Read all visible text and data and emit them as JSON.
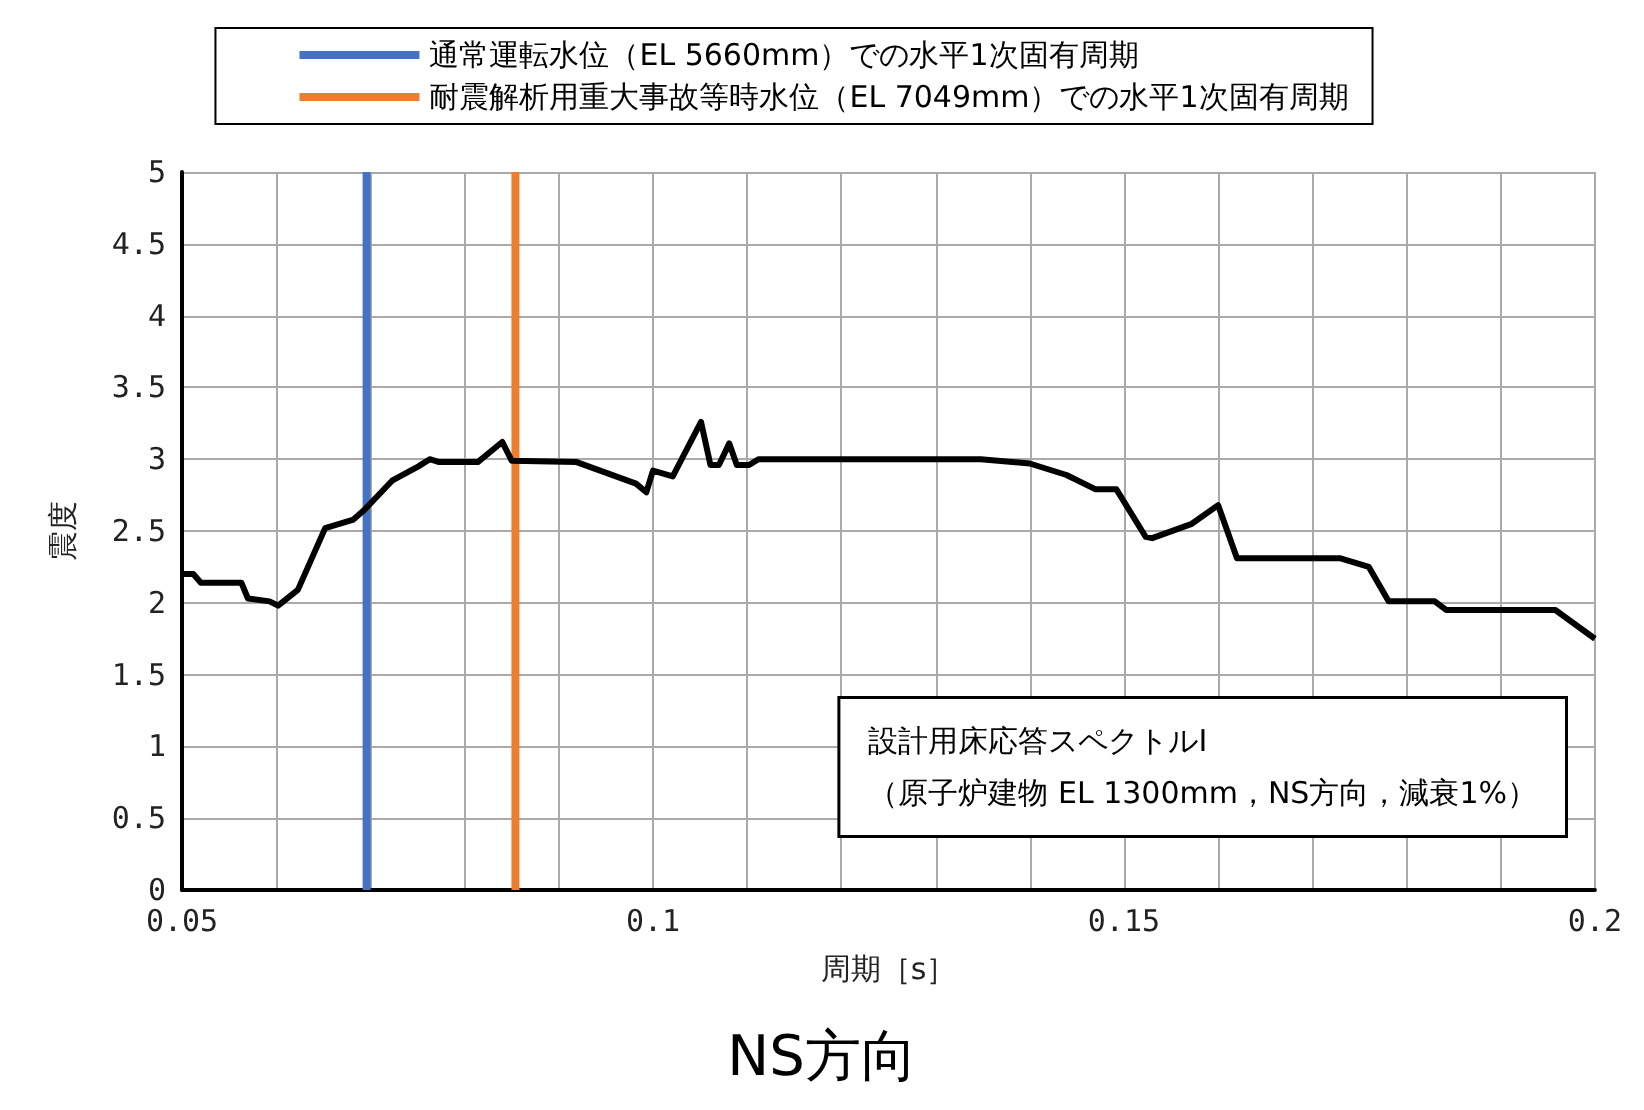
{
  "chart_data": {
    "type": "line",
    "title": "NS方向",
    "xlabel": "周期［s］",
    "ylabel": "震度",
    "annotations": [
      "設計用床応答スペクトルⅠ\n（原子炉建物 EL 1300mm，NS方向，減衰1%）"
    ],
    "x": [
      0.05,
      0.0512,
      0.052,
      0.0563,
      0.057,
      0.0593,
      0.0602,
      0.0623,
      0.0652,
      0.0682,
      0.0694,
      0.0723,
      0.0751,
      0.0763,
      0.0773,
      0.0814,
      0.084,
      0.085,
      0.0919,
      0.0982,
      0.0993,
      0.1,
      0.1021,
      0.1051,
      0.1061,
      0.107,
      0.1081,
      0.1089,
      0.1102,
      0.1112,
      0.1348,
      0.14,
      0.1439,
      0.147,
      0.1492,
      0.1523,
      0.153,
      0.1572,
      0.16,
      0.162,
      0.173,
      0.176,
      0.1781,
      0.183,
      0.1842,
      0.1958,
      0.2
    ],
    "series": [
      {
        "color": "#000000",
        "values": [
          2.2,
          2.2,
          2.14,
          2.14,
          2.03,
          2.01,
          1.98,
          2.09,
          2.52,
          2.58,
          2.65,
          2.85,
          2.95,
          3.0,
          2.98,
          2.98,
          3.12,
          2.99,
          2.98,
          2.83,
          2.77,
          2.92,
          2.88,
          3.26,
          2.96,
          2.96,
          3.11,
          2.96,
          2.96,
          3.0,
          3.0,
          2.97,
          2.89,
          2.79,
          2.79,
          2.46,
          2.45,
          2.55,
          2.68,
          2.31,
          2.31,
          2.25,
          2.01,
          2.01,
          1.95,
          1.95,
          1.75
        ]
      }
    ],
    "ref_lines": [
      {
        "axis": "x",
        "value": 0.0696,
        "label": "通常運転水位（EL 5660mm）での水平1次固有周期",
        "color": "#4472c4"
      },
      {
        "axis": "x",
        "value": 0.0854,
        "label": "耐震解析用重大事故等時水位（EL 7049mm）での水平1次固有周期",
        "color": "#ed7d31"
      }
    ],
    "xlim": [
      0.05,
      0.2
    ],
    "xticks": [
      0.05,
      {
        "value": 0.06,
        "label": null
      },
      {
        "value": 0.07,
        "label": null
      },
      {
        "value": 0.08,
        "label": null
      },
      {
        "value": 0.09,
        "label": null
      },
      0.1,
      {
        "value": 0.11,
        "label": null
      },
      {
        "value": 0.12,
        "label": null
      },
      {
        "value": 0.13,
        "label": null
      },
      {
        "value": 0.14,
        "label": null
      },
      0.15,
      {
        "value": 0.16,
        "label": null
      },
      {
        "value": 0.17,
        "label": null
      },
      {
        "value": 0.18,
        "label": null
      },
      {
        "value": 0.19,
        "label": null
      },
      0.2
    ],
    "ylim": [
      0,
      5
    ],
    "yticks": [
      0,
      0.5,
      1,
      1.5,
      2,
      2.5,
      3,
      3.5,
      4,
      4.5,
      5
    ],
    "grid": true,
    "legend": "top",
    "marker": "none",
    "line_style": "solid"
  }
}
